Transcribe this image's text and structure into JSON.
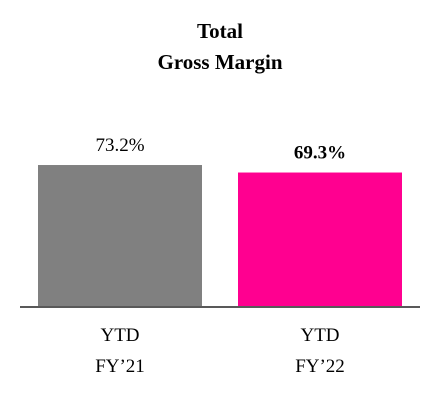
{
  "chart_data": {
    "type": "bar",
    "title": "Total\nGross Margin",
    "categories": [
      "YTD\nFY’21",
      "YTD\nFY’22"
    ],
    "values": [
      73.2,
      69.3
    ],
    "value_labels": [
      "73.2%",
      "69.3%"
    ],
    "value_label_bold": [
      false,
      true
    ],
    "colors": [
      "#808080",
      "#ff0090"
    ]
  }
}
